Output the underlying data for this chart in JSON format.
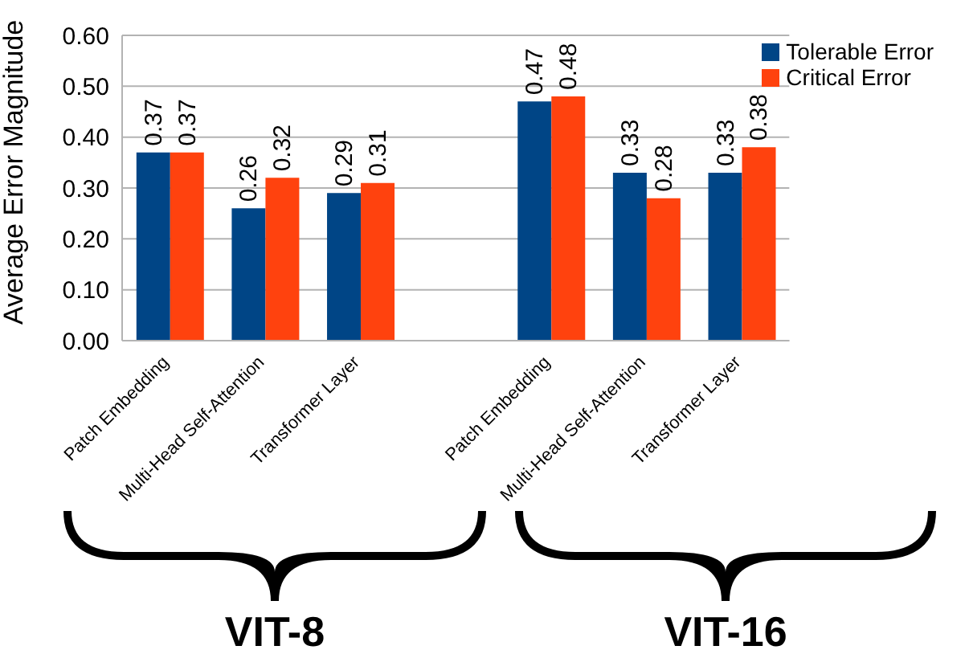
{
  "chart_data": {
    "type": "bar",
    "ylabel": "Average Error Magnitude",
    "categories": [
      "Patch Embedding",
      "Multi-Head Self-Attention",
      "Transformer Layer",
      null,
      "Patch Embedding",
      "Multi-Head Self-Attention",
      "Transformer Layer"
    ],
    "series": [
      {
        "name": "Tolerable Error",
        "color": "#004586",
        "values": [
          0.37,
          0.26,
          0.29,
          null,
          0.47,
          0.33,
          0.33
        ]
      },
      {
        "name": "Critical Error",
        "color": "#ff420e",
        "values": [
          0.37,
          0.32,
          0.31,
          null,
          0.48,
          0.28,
          0.38
        ]
      }
    ],
    "ylim": [
      0,
      0.6
    ],
    "yticks": [
      {
        "value": 0,
        "label": "0.00"
      },
      {
        "value": 0.1,
        "label": "0.10"
      },
      {
        "value": 0.2,
        "label": "0.20"
      },
      {
        "value": 0.3,
        "label": "0.30"
      },
      {
        "value": 0.4,
        "label": "0.40"
      },
      {
        "value": 0.5,
        "label": "0.50"
      },
      {
        "value": 0.6,
        "label": "0.60"
      }
    ],
    "grid": "y",
    "legend": "top right",
    "data_labels": true,
    "annotations": [
      "VIT-8",
      "VIT-16"
    ]
  }
}
